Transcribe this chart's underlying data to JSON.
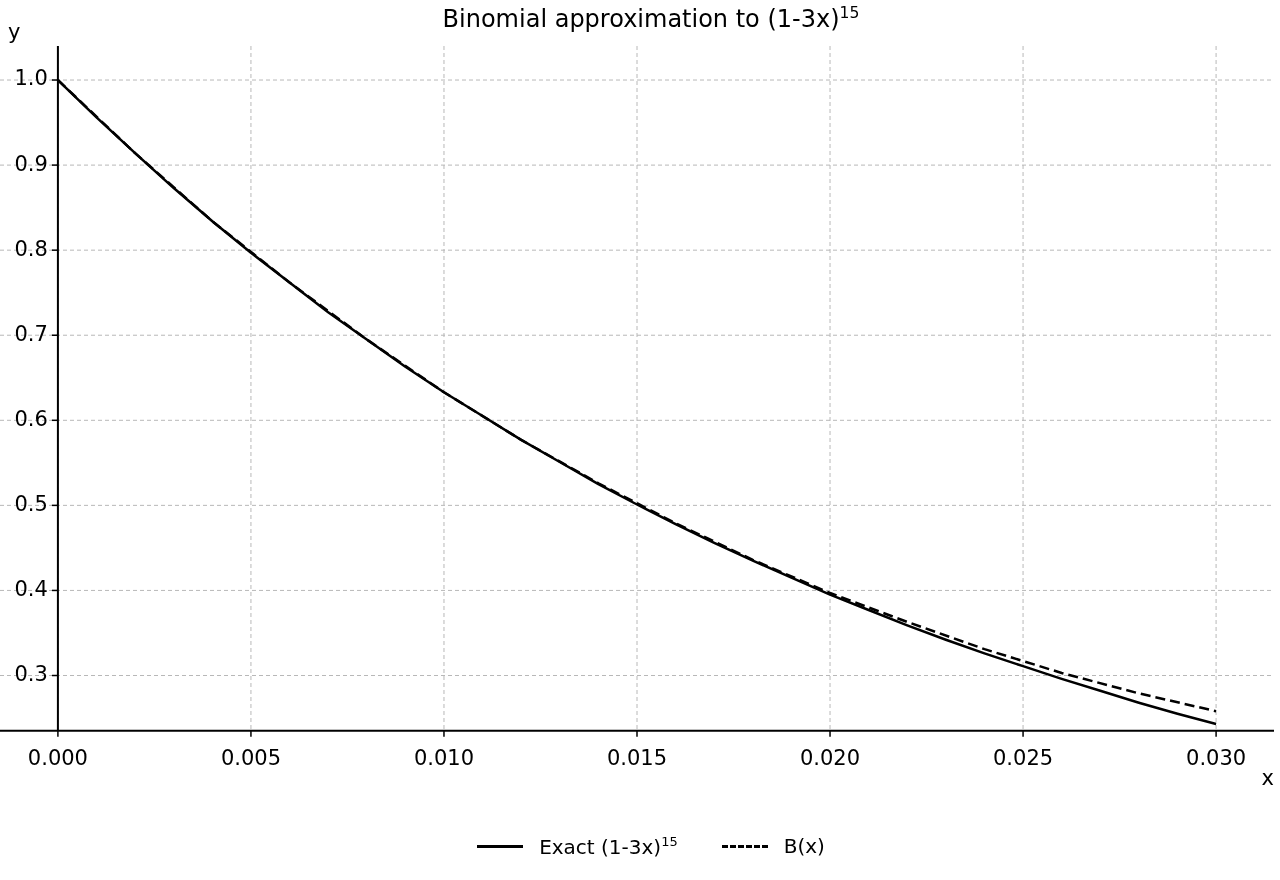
{
  "chart_data": {
    "type": "line",
    "title": "Binomial approximation to (1-3x)$^{15}$",
    "xlabel": "x",
    "ylabel": "y",
    "xlim": [
      -0.0015,
      0.0315
    ],
    "ylim": [
      0.235,
      1.04
    ],
    "xticks": [
      {
        "value": 0,
        "label": "0.000"
      },
      {
        "value": 0.005,
        "label": "0.005"
      },
      {
        "value": 0.01,
        "label": "0.010"
      },
      {
        "value": 0.015,
        "label": "0.015"
      },
      {
        "value": 0.02,
        "label": "0.020"
      },
      {
        "value": 0.025,
        "label": "0.025"
      },
      {
        "value": 0.03,
        "label": "0.030"
      }
    ],
    "yticks": [
      {
        "value": 0.3,
        "label": "0.3"
      },
      {
        "value": 0.4,
        "label": "0.4"
      },
      {
        "value": 0.5,
        "label": "0.5"
      },
      {
        "value": 0.6,
        "label": "0.6"
      },
      {
        "value": 0.7,
        "label": "0.7"
      },
      {
        "value": 0.8,
        "label": "0.8"
      },
      {
        "value": 0.9,
        "label": "0.9"
      },
      {
        "value": 1,
        "label": "1.0"
      }
    ],
    "grid": true,
    "legend": "bottom",
    "marker": "none",
    "series": [
      {
        "name": "Exact (1-3x)$^{15}$",
        "color": "#000000",
        "line_style": "solid",
        "x": [
          0,
          0.001,
          0.002,
          0.003,
          0.004,
          0.005,
          0.006,
          0.007,
          0.008,
          0.009,
          0.01,
          0.011,
          0.012,
          0.013,
          0.014,
          0.015,
          0.016,
          0.017,
          0.018,
          0.019,
          0.02,
          0.021,
          0.022,
          0.023,
          0.024,
          0.025,
          0.026,
          0.027,
          0.028,
          0.029,
          0.03
        ],
        "values": [
          1,
          0.956,
          0.914,
          0.873,
          0.834,
          0.797,
          0.762,
          0.727,
          0.695,
          0.663,
          0.633,
          0.605,
          0.577,
          0.551,
          0.525,
          0.501,
          0.478,
          0.456,
          0.435,
          0.415,
          0.395,
          0.377,
          0.359,
          0.342,
          0.326,
          0.311,
          0.296,
          0.282,
          0.268,
          0.255,
          0.243
        ]
      },
      {
        "name": "B(x)",
        "color": "#000000",
        "line_style": "dashed",
        "x": [
          0,
          0.002,
          0.004,
          0.006,
          0.008,
          0.01,
          0.012,
          0.014,
          0.016,
          0.018,
          0.02,
          0.022,
          0.024,
          0.026,
          0.028,
          0.03
        ],
        "values": [
          1,
          0.914,
          0.834,
          0.762,
          0.695,
          0.633,
          0.577,
          0.526,
          0.479,
          0.436,
          0.397,
          0.363,
          0.331,
          0.303,
          0.279,
          0.258
        ]
      }
    ]
  }
}
